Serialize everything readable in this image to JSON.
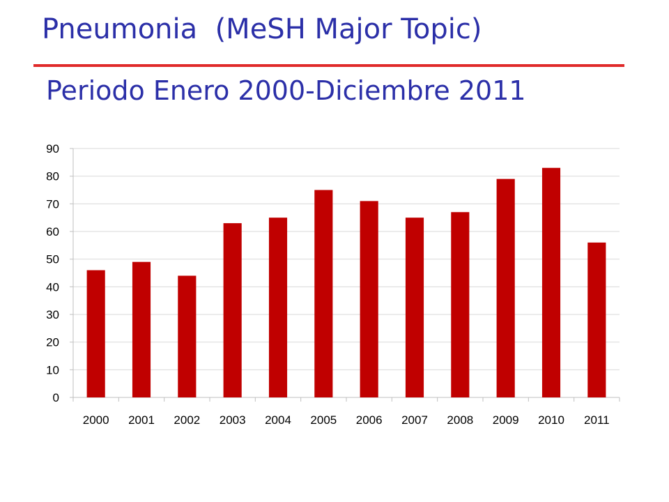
{
  "slide": {
    "title": "Pneumonia  (MeSH Major Topic)",
    "subtitle": "Periodo Enero 2000-Diciembre 2011",
    "title_color": "#2b2fa8",
    "rule_color": "#e02a2a"
  },
  "chart_data": {
    "type": "bar",
    "title": "",
    "xlabel": "",
    "ylabel": "",
    "categories": [
      "2000",
      "2001",
      "2002",
      "2003",
      "2004",
      "2005",
      "2006",
      "2007",
      "2008",
      "2009",
      "2010",
      "2011"
    ],
    "values": [
      46,
      49,
      44,
      63,
      65,
      75,
      71,
      65,
      67,
      79,
      83,
      56
    ],
    "ylim": [
      0,
      90
    ],
    "yticks": [
      "0",
      "10",
      "20",
      "30",
      "40",
      "50",
      "60",
      "70",
      "80",
      "90"
    ],
    "grid": true,
    "legend": "none",
    "bar_color": "#c00000"
  }
}
